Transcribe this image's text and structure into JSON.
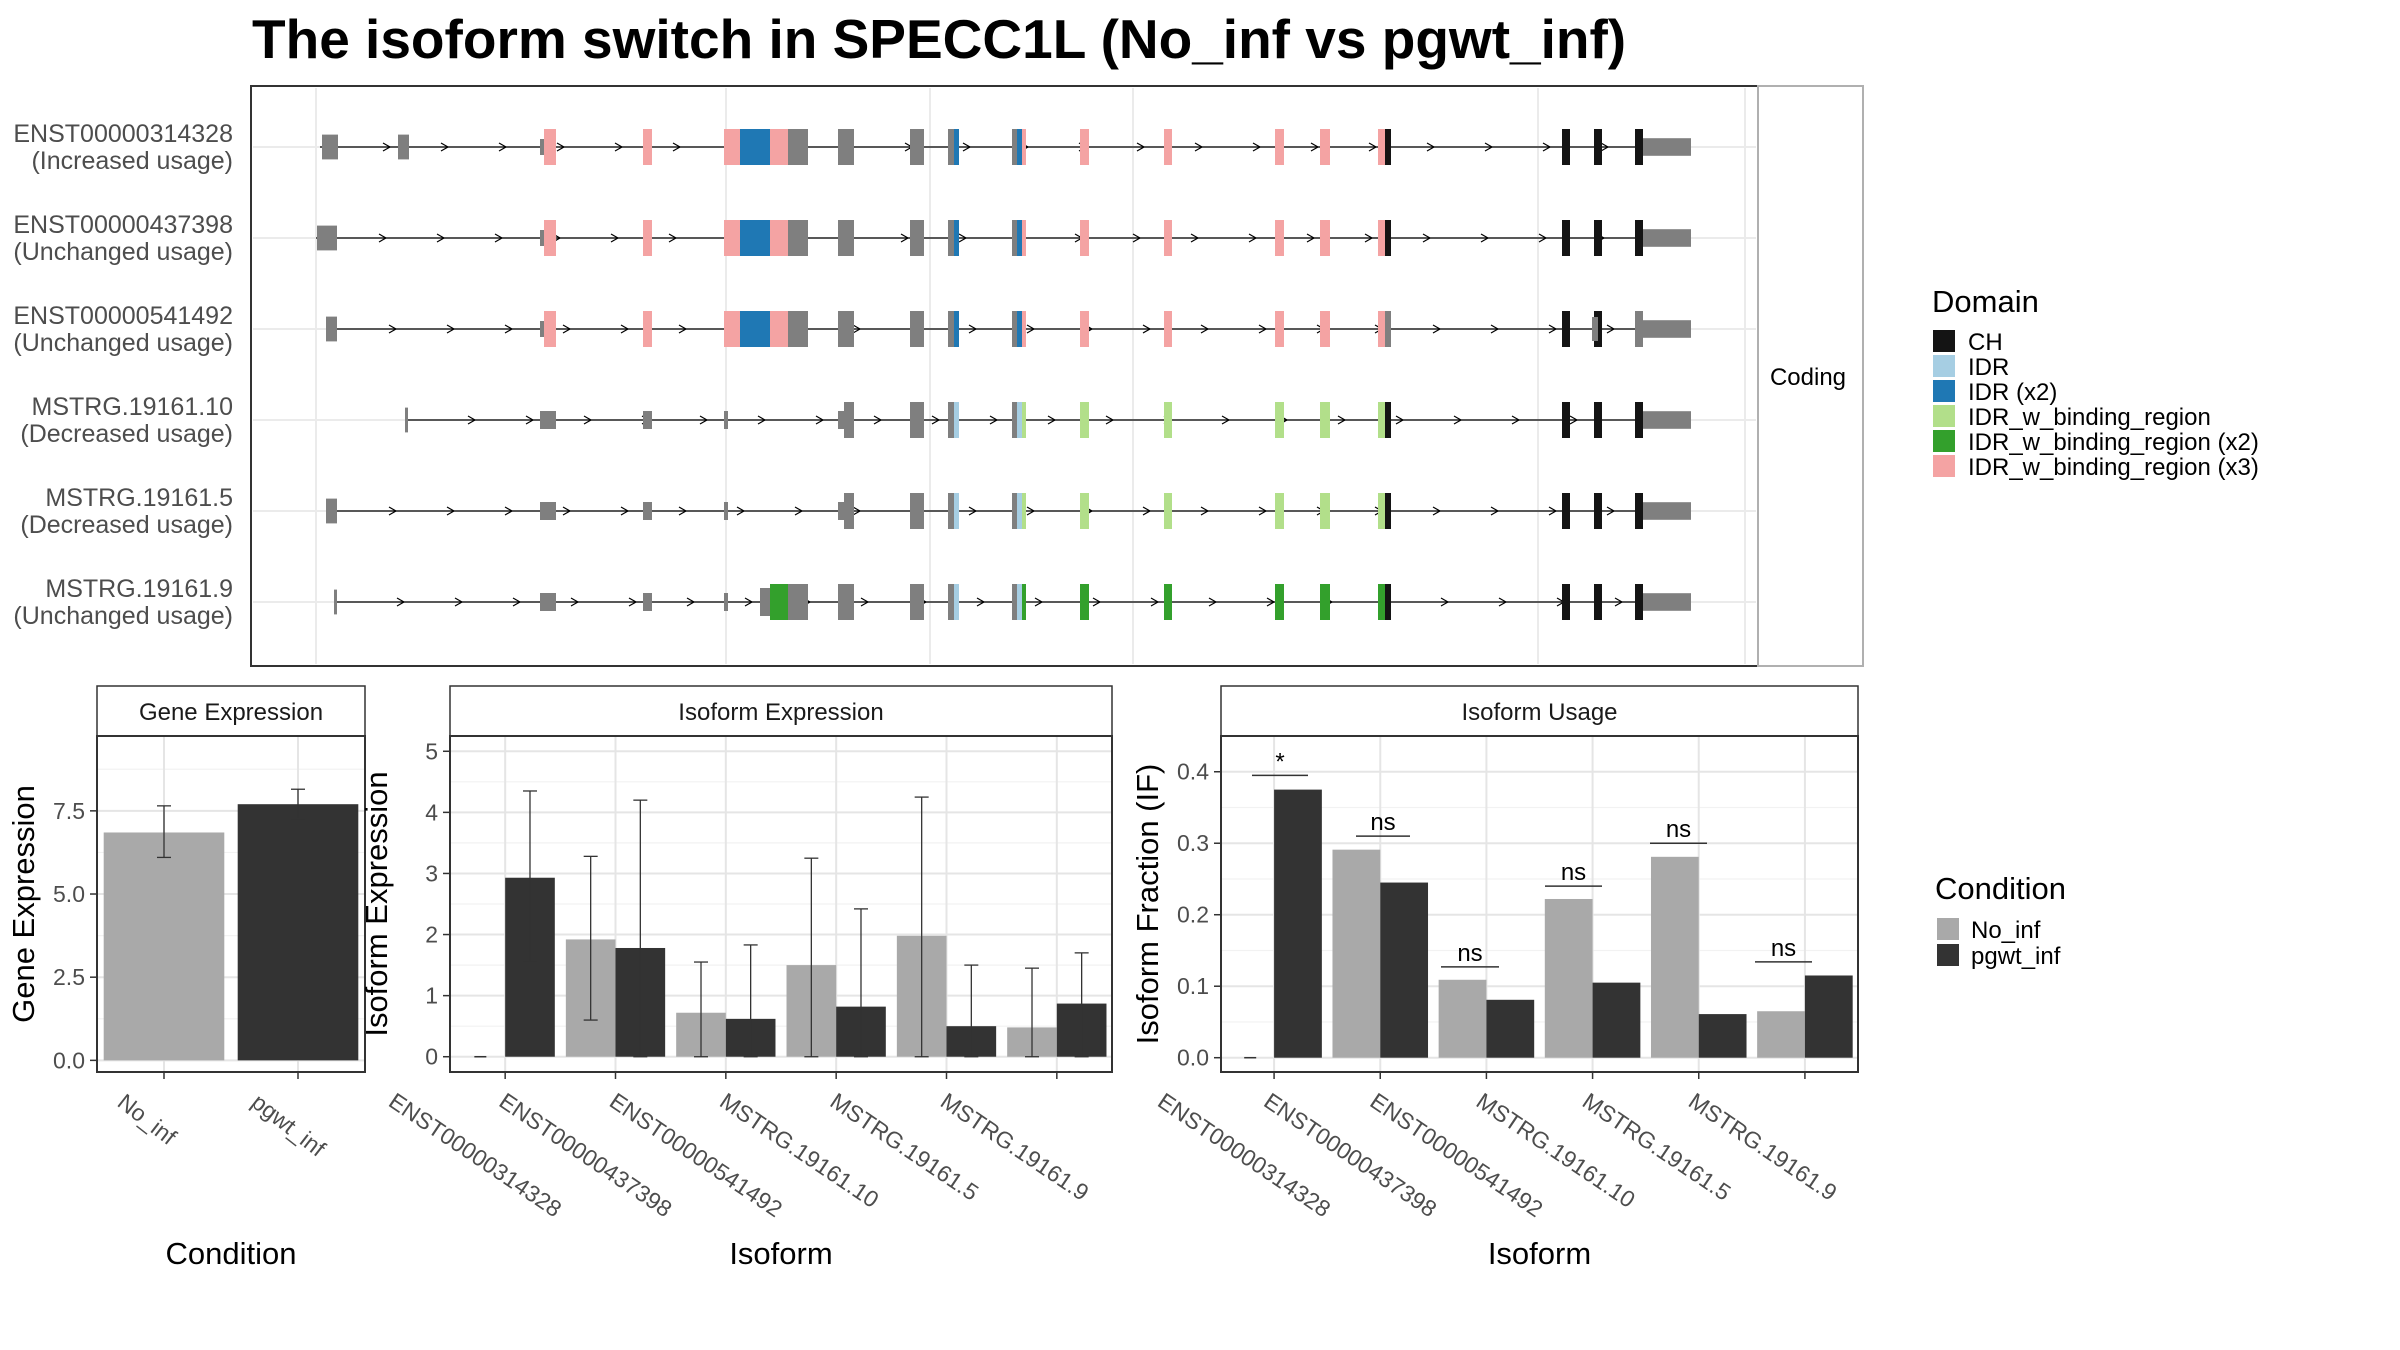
{
  "title": "The isoform switch in SPECC1L (No_inf vs pgwt_inf)",
  "colors": {
    "No_inf": "#a9a9a9",
    "pgwt_inf": "#333333",
    "exon": "#7f7f7f",
    "CH": "#141414",
    "IDR": "#a6cee3",
    "IDR (x2)": "#1f78b4",
    "IDR_w_binding_region": "#b2df8a",
    "IDR_w_binding_region (x2)": "#33a02c",
    "IDR_w_binding_region (x3)": "#f4a3a3"
  },
  "structure": {
    "facet_label": "Coding",
    "legend_title": "Domain",
    "legend_items": [
      "CH",
      "IDR",
      "IDR (x2)",
      "IDR_w_binding_region",
      "IDR_w_binding_region (x2)",
      "IDR_w_binding_region (x3)"
    ],
    "isoforms": [
      {
        "id": "ENST00000314328",
        "usage": "(Increased usage)",
        "template": "A",
        "start": 320
      },
      {
        "id": "ENST00000437398",
        "usage": "(Unchanged usage)",
        "template": "A",
        "start": 316
      },
      {
        "id": "ENST00000541492",
        "usage": "(Unchanged usage)",
        "template": "C",
        "start": 326
      },
      {
        "id": "MSTRG.19161.10",
        "usage": "(Decreased usage)",
        "template": "B",
        "start": 405
      },
      {
        "id": "MSTRG.19161.5",
        "usage": "(Decreased usage)",
        "template": "B",
        "start": 326
      },
      {
        "id": "MSTRG.19161.9",
        "usage": "(Unchanged usage)",
        "template": "D",
        "start": 334
      }
    ]
  },
  "chart_data": [
    {
      "type": "bar",
      "title": "Gene Expression",
      "xlabel": "Condition",
      "ylabel": "Gene Expression",
      "categories": [
        "No_inf",
        "pgwt_inf"
      ],
      "values": [
        6.85,
        7.7
      ],
      "error_low": [
        6.1,
        7.25
      ],
      "error_high": [
        7.65,
        8.15
      ],
      "ylim": [
        -0.35,
        9.75
      ],
      "yticks": [
        "0.0",
        "2.5",
        "5.0",
        "7.5"
      ],
      "grid": true
    },
    {
      "type": "bar",
      "title": "Isoform Expression",
      "xlabel": "Isoform",
      "ylabel": "Isoform Expression",
      "categories": [
        "ENST00000314328",
        "ENST00000437398",
        "ENST00000541492",
        "MSTRG.19161.10",
        "MSTRG.19161.5",
        "MSTRG.19161.9"
      ],
      "series": [
        {
          "name": "No_inf",
          "values": [
            0.0,
            1.92,
            0.72,
            1.5,
            1.98,
            0.48
          ],
          "error_low": [
            0.0,
            0.6,
            0.0,
            0.0,
            0.0,
            0.0
          ],
          "error_high": [
            0.0,
            3.28,
            1.55,
            3.25,
            4.25,
            1.45
          ]
        },
        {
          "name": "pgwt_inf",
          "values": [
            2.93,
            1.78,
            0.62,
            0.82,
            0.5,
            0.87
          ],
          "error_low": [
            1.55,
            0.0,
            0.0,
            0.0,
            0.0,
            0.0
          ],
          "error_high": [
            4.35,
            4.2,
            1.83,
            2.42,
            1.5,
            1.7
          ]
        }
      ],
      "ylim": [
        -0.25,
        5.25
      ],
      "yticks": [
        "0",
        "1",
        "2",
        "3",
        "4",
        "5"
      ],
      "grid": true
    },
    {
      "type": "bar",
      "title": "Isoform Usage",
      "xlabel": "Isoform",
      "ylabel": "Isoform Fraction (IF)",
      "categories": [
        "ENST00000314328",
        "ENST00000437398",
        "ENST00000541492",
        "MSTRG.19161.10",
        "MSTRG.19161.5",
        "MSTRG.19161.9"
      ],
      "series": [
        {
          "name": "No_inf",
          "values": [
            0.0,
            0.291,
            0.109,
            0.222,
            0.281,
            0.065
          ]
        },
        {
          "name": "pgwt_inf",
          "values": [
            0.375,
            0.245,
            0.081,
            0.105,
            0.061,
            0.115
          ]
        }
      ],
      "significance": [
        "*",
        "ns",
        "ns",
        "ns",
        "ns",
        "ns"
      ],
      "significance_value": [
        0.395,
        0.31,
        0.127,
        0.24,
        0.3,
        0.134
      ],
      "ylim": [
        -0.02,
        0.45
      ],
      "yticks": [
        "0.0",
        "0.1",
        "0.2",
        "0.3",
        "0.4"
      ],
      "grid": true
    }
  ],
  "condition_legend": {
    "title": "Condition",
    "items": [
      "No_inf",
      "pgwt_inf"
    ]
  }
}
